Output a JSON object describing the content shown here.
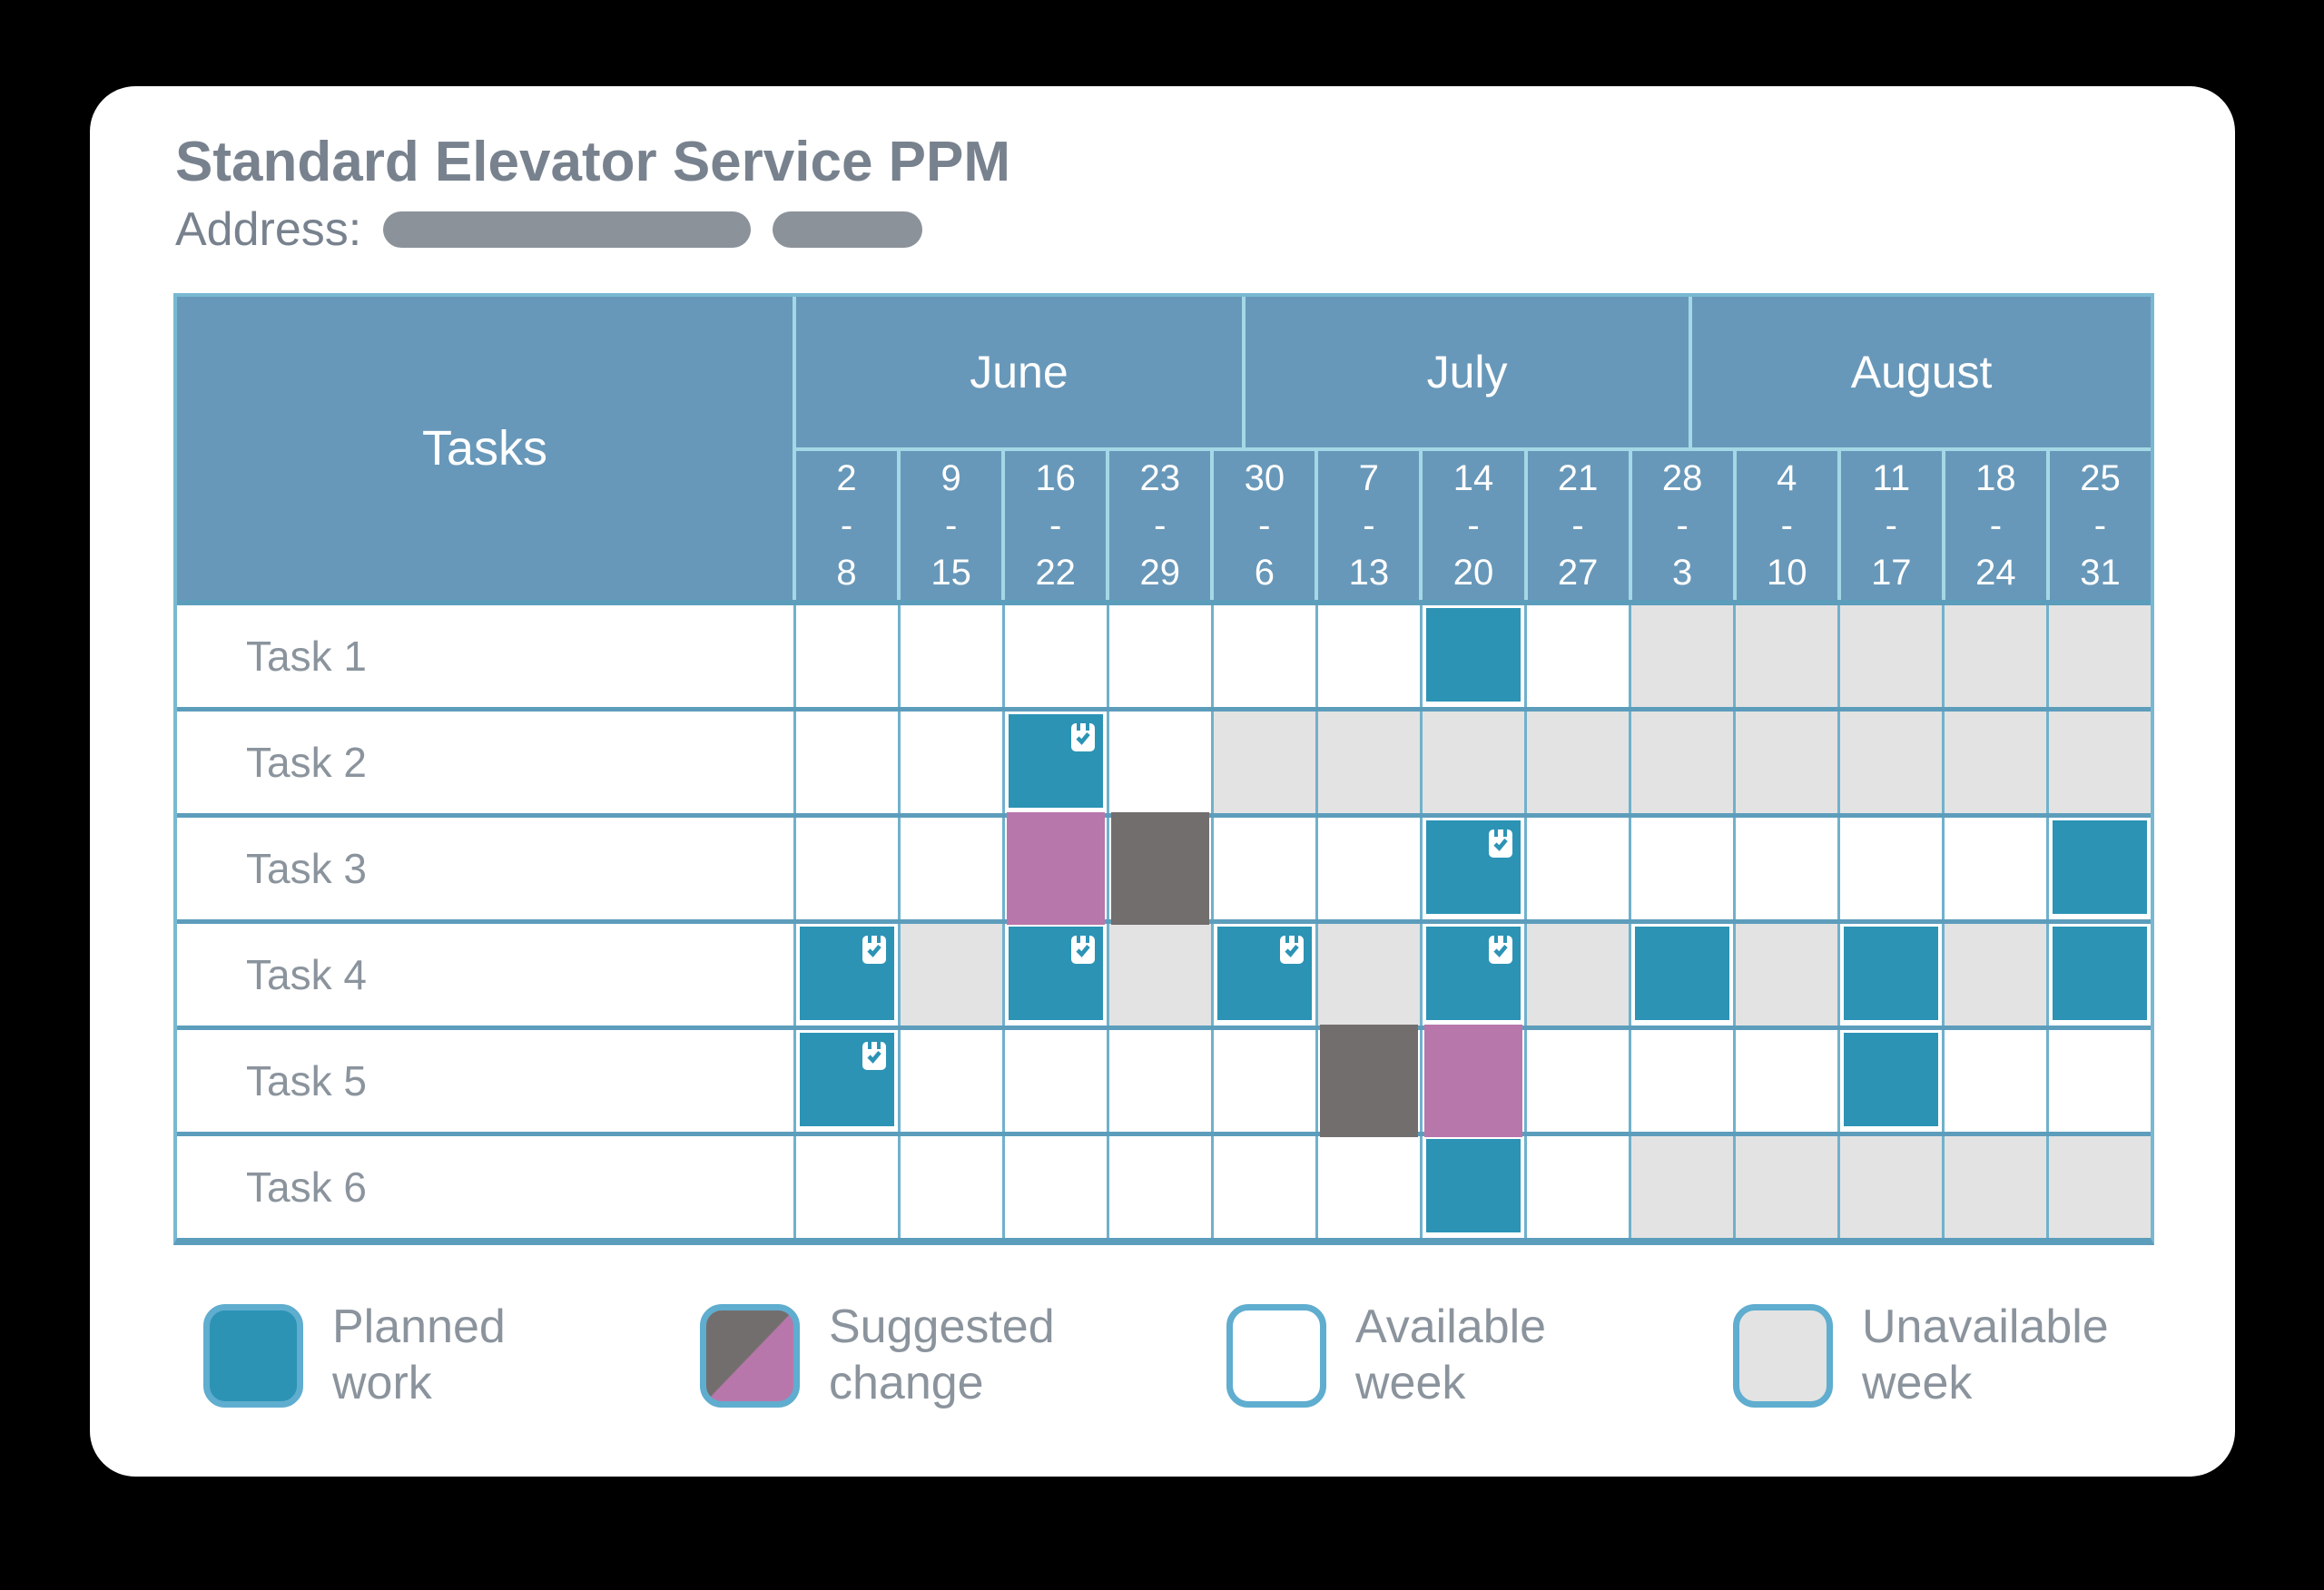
{
  "title": "Standard Elevator Service PPM",
  "address_label": "Address:",
  "chart_data": {
    "type": "table",
    "title": "Standard Elevator Service PPM",
    "tasks_header": "Tasks",
    "x_groups": [
      {
        "month": "June",
        "weeks": [
          "2-8",
          "9-15",
          "16-22",
          "23-29",
          "30-6"
        ]
      },
      {
        "month": "July",
        "weeks": [
          "7-13",
          "14-20",
          "21-27",
          "28-3"
        ]
      },
      {
        "month": "August",
        "weeks": [
          "4-10",
          "11-17",
          "18-24",
          "25-31"
        ]
      }
    ],
    "cell_state_key": {
      "A": "available week",
      "U": "unavailable week",
      "P": "planned work",
      "PI": "planned work with check icon",
      "SO": "suggested change (old slot, gray)",
      "SN": "suggested change (new slot, purple)"
    },
    "rows": [
      {
        "label": "Task 1",
        "cells": [
          "A",
          "A",
          "A",
          "A",
          "A",
          "A",
          "P",
          "A",
          "U",
          "U",
          "U",
          "U",
          "U"
        ]
      },
      {
        "label": "Task 2",
        "cells": [
          "A",
          "A",
          "PI",
          "A",
          "U",
          "U",
          "U",
          "U",
          "U",
          "U",
          "U",
          "U",
          "U"
        ]
      },
      {
        "label": "Task 3",
        "cells": [
          "A",
          "A",
          "SN",
          "SO",
          "A",
          "A",
          "PI",
          "A",
          "A",
          "A",
          "A",
          "A",
          "P"
        ]
      },
      {
        "label": "Task 4",
        "cells": [
          "PI",
          "U",
          "PI",
          "U",
          "PI",
          "U",
          "PI",
          "U",
          "P",
          "U",
          "P",
          "U",
          "P"
        ]
      },
      {
        "label": "Task 5",
        "cells": [
          "PI",
          "A",
          "A",
          "A",
          "A",
          "SO",
          "SN",
          "A",
          "A",
          "A",
          "P",
          "A",
          "A"
        ]
      },
      {
        "label": "Task 6",
        "cells": [
          "A",
          "A",
          "A",
          "A",
          "A",
          "A",
          "P",
          "A",
          "U",
          "U",
          "U",
          "U",
          "U"
        ]
      }
    ],
    "legend_position": "bottom",
    "grid": true
  },
  "legend": [
    {
      "type": "planned",
      "label": "Planned\nwork"
    },
    {
      "type": "suggested",
      "label": "Suggested\nchange"
    },
    {
      "type": "available",
      "label": "Available\nweek"
    },
    {
      "type": "unavailable",
      "label": "Unavailable\nweek"
    }
  ],
  "colors": {
    "planned_teal": "#2c93b5",
    "suggested_from_gray": "#736e6e",
    "suggested_to_purple": "#b877ab",
    "unavailable_gray": "#e3e3e3",
    "header_blue": "#6898b9",
    "grid_light_blue": "#a5d8e6",
    "grid_dark_blue": "#5d9dbc",
    "grid_mid_blue": "#70b1cc",
    "legend_swatch_border": "#5fadcf",
    "text_gray": "#8b949d",
    "title_gray": "#78828e",
    "redaction_gray": "#8b929a"
  }
}
